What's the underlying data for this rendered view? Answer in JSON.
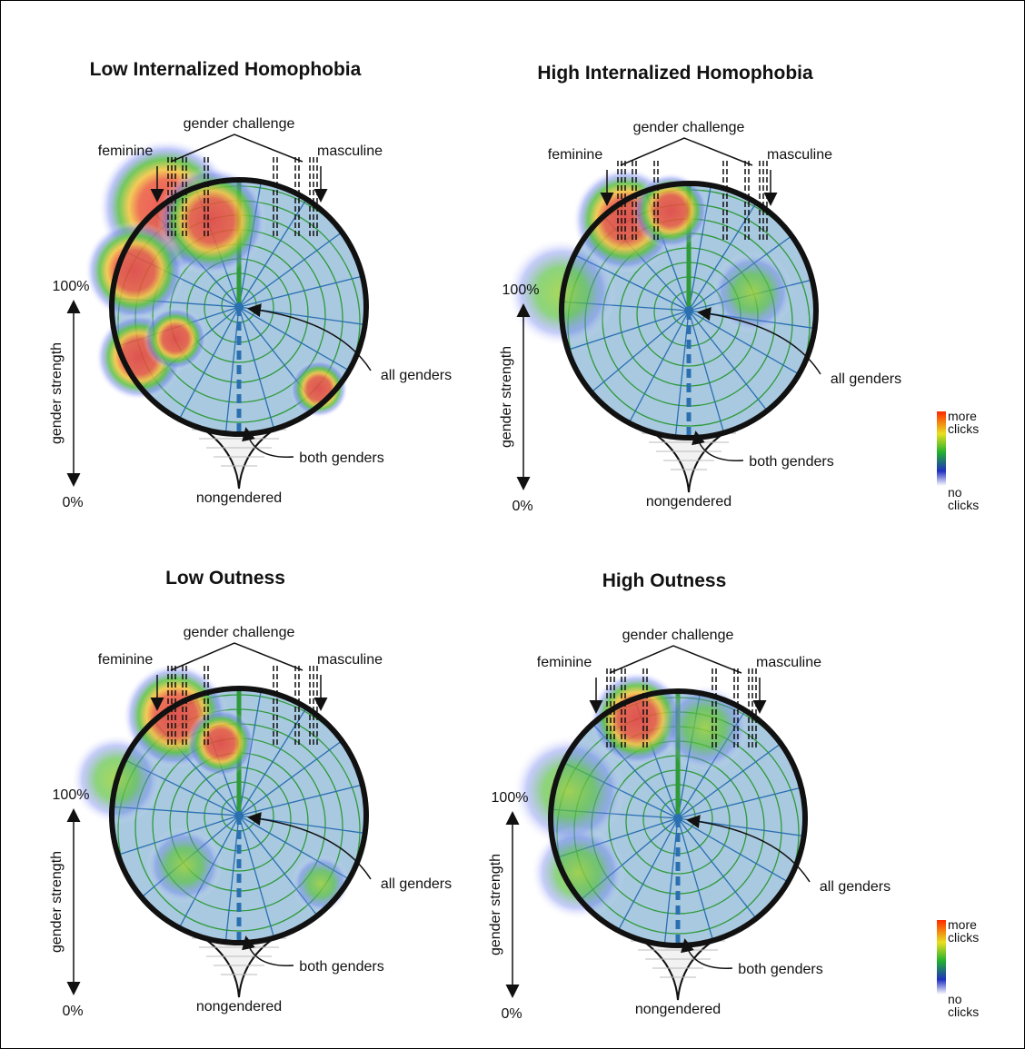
{
  "panels": [
    {
      "title": "Low Internalized Homophobia",
      "gender_challenge": "gender challenge",
      "feminine": "feminine",
      "masculine": "masculine",
      "top_percent": "100%",
      "axis_label": "gender strength",
      "bottom_percent": "0%",
      "all_genders": "all genders",
      "both_genders": "both genders",
      "nongendered": "nongendered"
    },
    {
      "title": "High Internalized Homophobia",
      "gender_challenge": "gender challenge",
      "feminine": "feminine",
      "masculine": "masculine",
      "top_percent": "100%",
      "axis_label": "gender strength",
      "bottom_percent": "0%",
      "all_genders": "all genders",
      "both_genders": "both genders",
      "nongendered": "nongendered"
    },
    {
      "title": "Low Outness",
      "gender_challenge": "gender challenge",
      "feminine": "feminine",
      "masculine": "masculine",
      "top_percent": "100%",
      "axis_label": "gender strength",
      "bottom_percent": "0%",
      "all_genders": "all genders",
      "both_genders": "both genders",
      "nongendered": "nongendered"
    },
    {
      "title": "High Outness",
      "gender_challenge": "gender challenge",
      "feminine": "feminine",
      "masculine": "masculine",
      "top_percent": "100%",
      "axis_label": "gender strength",
      "bottom_percent": "0%",
      "all_genders": "all genders",
      "both_genders": "both genders",
      "nongendered": "nongendered"
    }
  ],
  "legends": [
    {
      "max_label": "more clicks",
      "min_label": "no clicks"
    },
    {
      "max_label": "more clicks",
      "min_label": "no clicks"
    }
  ]
}
